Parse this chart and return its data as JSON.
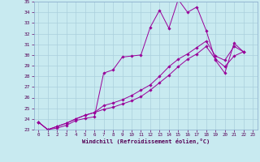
{
  "xlabel": "Windchill (Refroidissement éolien,°C)",
  "xlim": [
    -0.5,
    23.5
  ],
  "ylim": [
    23,
    35
  ],
  "yticks": [
    23,
    24,
    25,
    26,
    27,
    28,
    29,
    30,
    31,
    32,
    33,
    34,
    35
  ],
  "xticks": [
    0,
    1,
    2,
    3,
    4,
    5,
    6,
    7,
    8,
    9,
    10,
    11,
    12,
    13,
    14,
    15,
    16,
    17,
    18,
    19,
    20,
    21,
    22,
    23
  ],
  "bg_color": "#c8eaf0",
  "line_color": "#990099",
  "grid_color": "#aad0dc",
  "series": [
    [
      23.7,
      23.0,
      23.15,
      23.4,
      23.85,
      24.05,
      24.2,
      28.3,
      28.6,
      29.8,
      29.9,
      30.0,
      32.6,
      34.2,
      32.5,
      35.2,
      34.0,
      34.5,
      32.3,
      29.5,
      28.3,
      31.1,
      30.3
    ],
    [
      23.7,
      23.0,
      23.3,
      23.6,
      24.0,
      24.35,
      24.6,
      25.25,
      25.5,
      25.8,
      26.2,
      26.7,
      27.2,
      28.0,
      28.9,
      29.6,
      30.1,
      30.7,
      31.3,
      29.9,
      29.5,
      30.8,
      30.3
    ],
    [
      23.7,
      23.0,
      23.3,
      23.6,
      24.0,
      24.35,
      24.6,
      24.9,
      25.1,
      25.4,
      25.7,
      26.1,
      26.7,
      27.4,
      28.1,
      28.9,
      29.6,
      30.1,
      30.8,
      29.6,
      28.9,
      29.9,
      30.3
    ]
  ]
}
